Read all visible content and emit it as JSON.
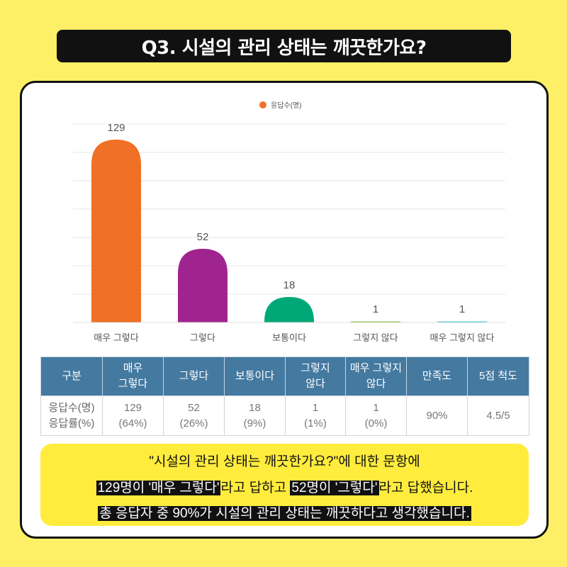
{
  "title": "Q3. 시설의 관리 상태는 깨끗한가요?",
  "chart_data": {
    "type": "bar",
    "legend": {
      "label": "응답수(명)",
      "position": "top-center"
    },
    "categories": [
      "매우 그렇다",
      "그렇다",
      "보통이다",
      "그렇지 않다",
      "매우 그렇지 않다"
    ],
    "values": [
      129,
      52,
      18,
      1,
      1
    ],
    "colors": [
      "#f07025",
      "#a0248f",
      "#00a878",
      "#7bc043",
      "#3cc6e0"
    ],
    "ylim": [
      0,
      140
    ],
    "grid": true
  },
  "table": {
    "headers": [
      "구분",
      "매우\n그렇다",
      "그렇다",
      "보통이다",
      "그렇지\n않다",
      "매우 그렇지\n않다",
      "만족도",
      "5점 척도"
    ],
    "row_label": "응답수(명)\n응답률(%)",
    "cells": [
      "129\n(64%)",
      "52\n(26%)",
      "18\n(9%)",
      "1\n(1%)",
      "1\n(0%)",
      "90%",
      "4.5/5"
    ]
  },
  "summary": {
    "line1": "\"시설의 관리 상태는 깨끗한가요?\"에 대한 문항에",
    "line2": [
      {
        "text": "129명이 '매우 그렇다'",
        "hl": true
      },
      {
        "text": "라고 답하고 ",
        "hl": false
      },
      {
        "text": "52명이 '그렇다'",
        "hl": true
      },
      {
        "text": "라고 답했습니다.",
        "hl": false
      }
    ],
    "line3": "총 응답자 중 90%가 시설의 관리 상태는 깨끗하다고 생각했습니다."
  }
}
